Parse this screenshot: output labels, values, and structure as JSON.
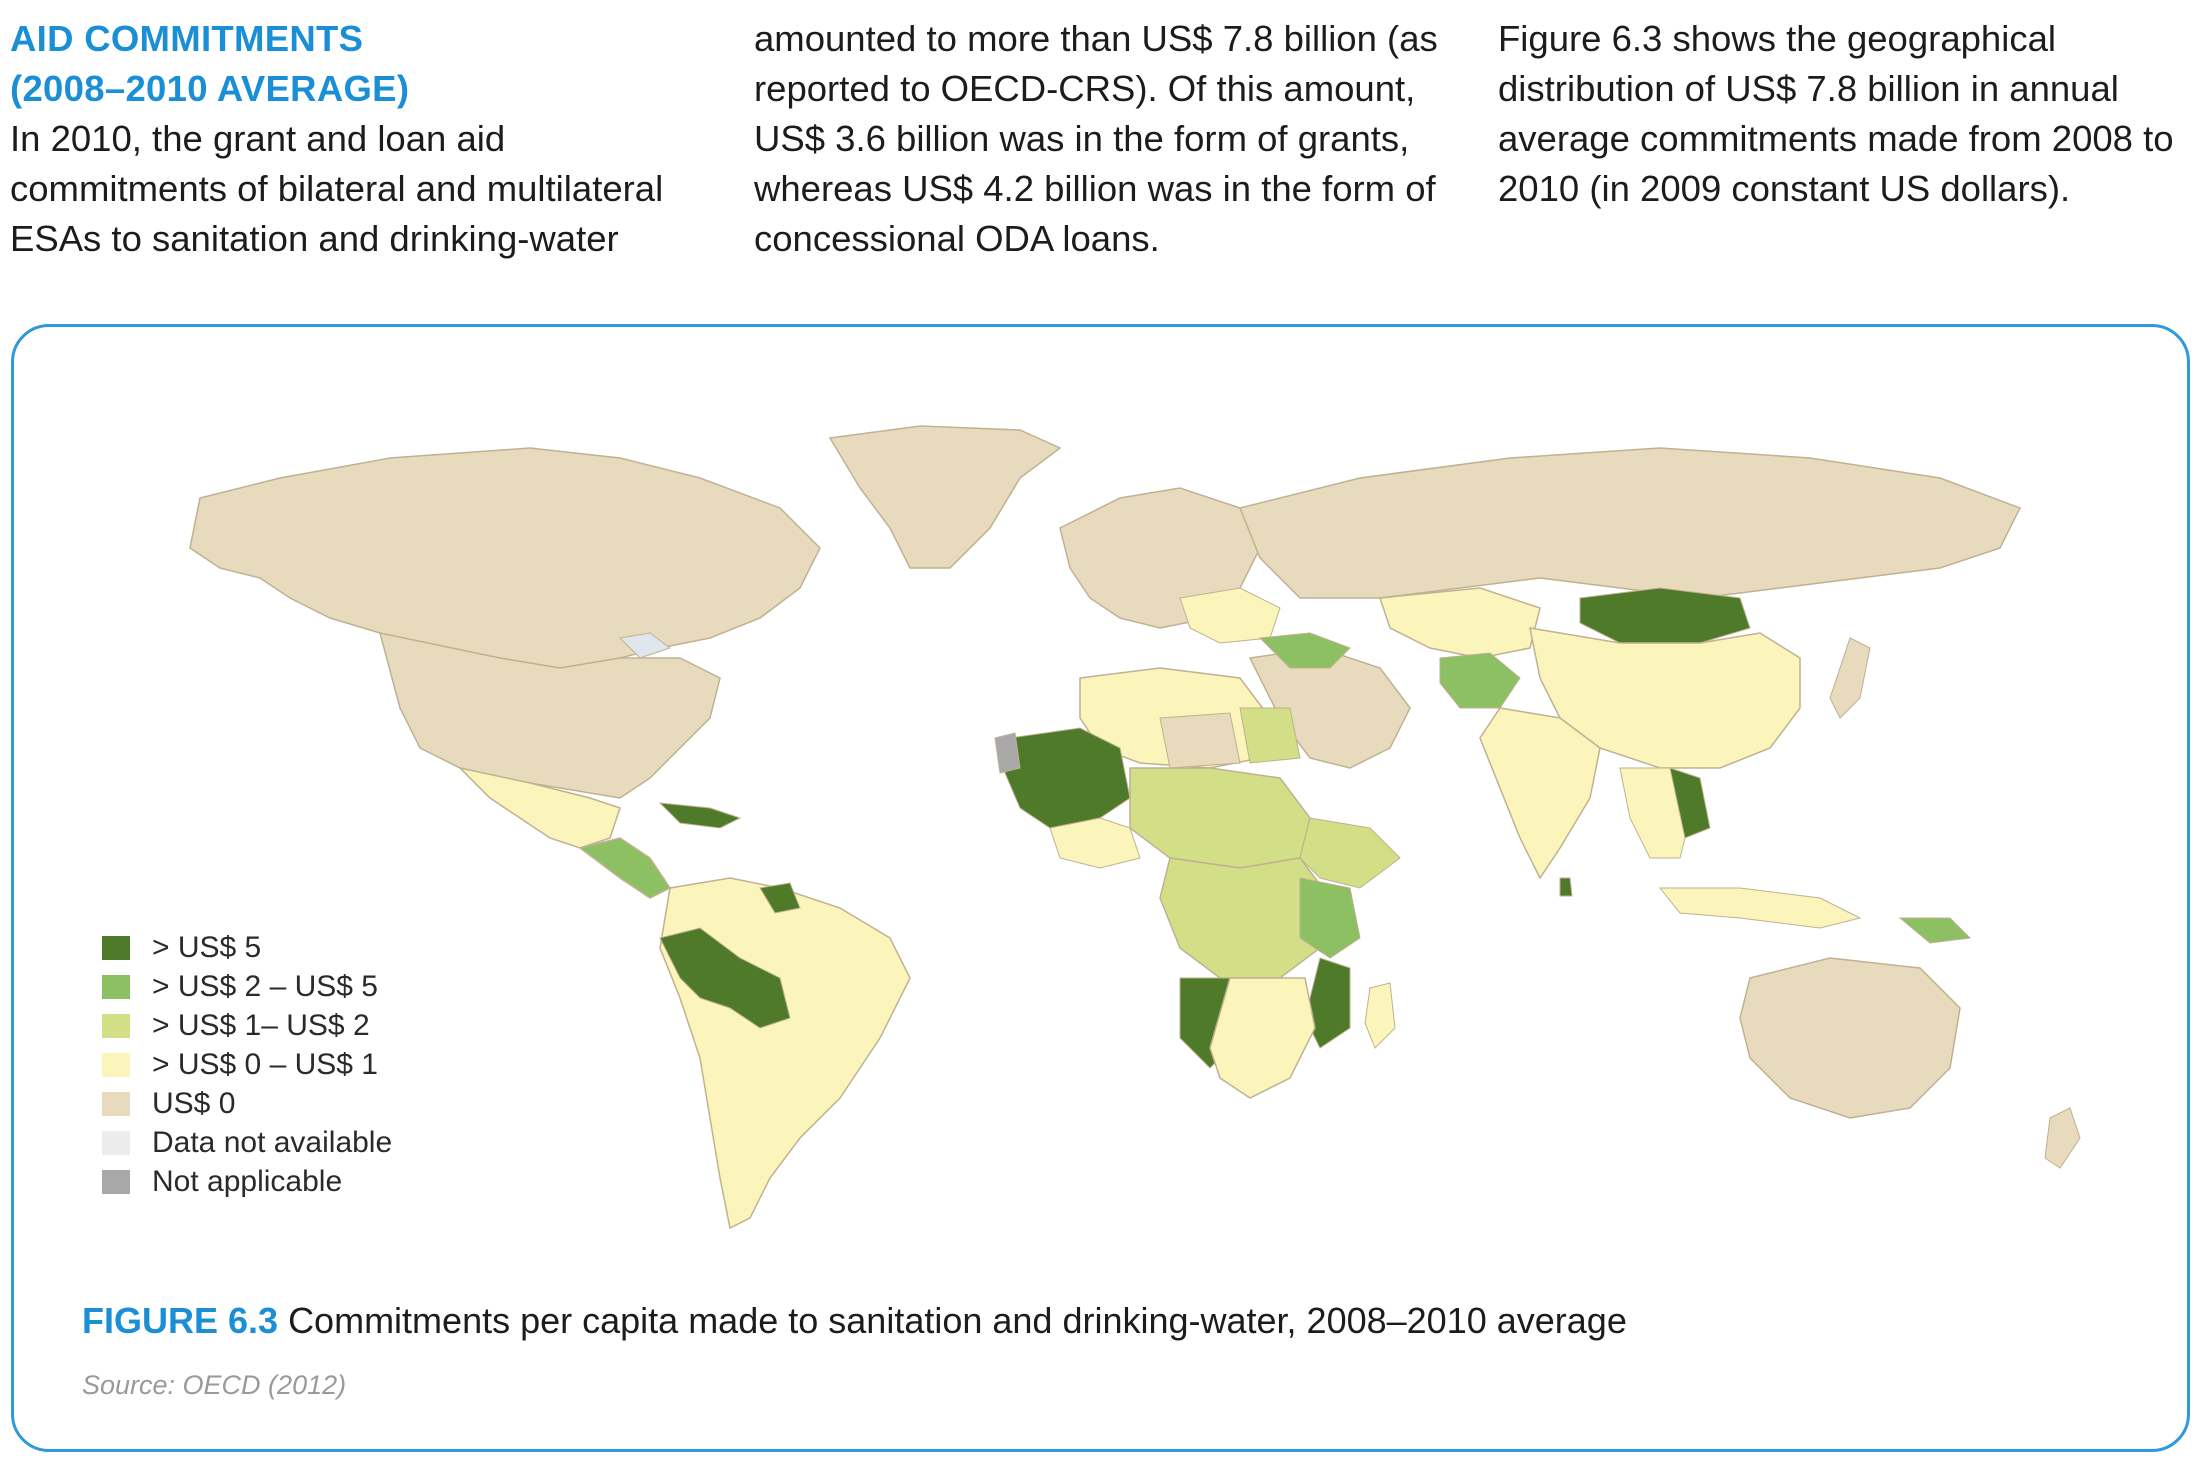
{
  "intro": {
    "heading_line1": "AID COMMITMENTS",
    "heading_line2": "(2008–2010 AVERAGE)",
    "col1_text": "In 2010, the grant and loan aid commitments of bilateral and multilateral ESAs to sanitation and drinking-water",
    "col2_text": "amounted to more than US$ 7.8 billion (as reported to OECD-CRS). Of this amount, US$ 3.6 billion was in the form of grants, whereas US$ 4.2 billion was in the form of concessional ODA loans.",
    "col3_text": "Figure 6.3 shows the geographical distribution of US$ 7.8 billion in annual average commitments made from 2008 to 2010 (in 2009 constant US dollars)."
  },
  "figure": {
    "number": "FIGURE 6.3",
    "caption": "Commitments per capita made to sanitation and drinking-water, 2008–2010 average",
    "source": "Source: OECD (2012)"
  },
  "legend": [
    {
      "label": "> US$ 5",
      "color": "#4f7a2a"
    },
    {
      "label": "> US$ 2 – US$ 5",
      "color": "#8cc063"
    },
    {
      "label": "> US$ 1– US$ 2",
      "color": "#d3df86"
    },
    {
      "label": "> US$ 0 – US$ 1",
      "color": "#fbf5bc"
    },
    {
      "label": "US$ 0",
      "color": "#e8dbbd"
    },
    {
      "label": "Data not available",
      "color": "#ececec"
    },
    {
      "label": "Not applicable",
      "color": "#a8a8a8"
    }
  ],
  "colors": {
    "accent": "#1a8fd6",
    "frame": "#2f9ad9",
    "water": "#ffffff",
    "zero": "#e8dbbd",
    "low": "#fbf5bc",
    "mid": "#d3df86",
    "high": "#8cc063",
    "top": "#4f7a2a",
    "na": "#a8a8a8",
    "nodata": "#ececec"
  }
}
